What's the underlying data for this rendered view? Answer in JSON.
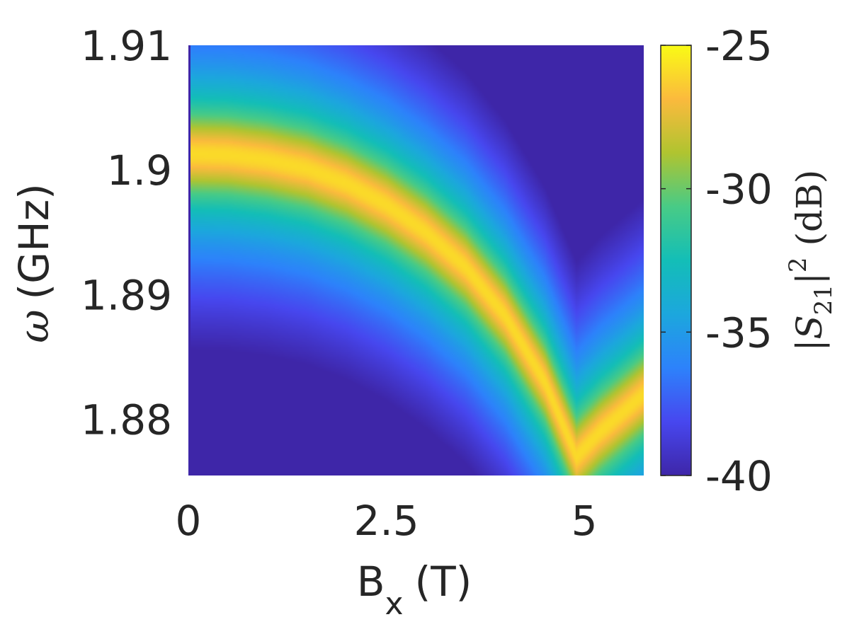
{
  "chart_data": {
    "type": "heatmap",
    "title": "",
    "x": {
      "label_main": "B",
      "label_sub": "x",
      "label_unit": "(T)",
      "range": [
        0,
        5.75
      ],
      "ticks": [
        0,
        2.5,
        5
      ],
      "tick_labels": [
        "0",
        "2.5",
        "5"
      ]
    },
    "y": {
      "label_symbol": "ω",
      "label_unit": "(GHz)",
      "range": [
        1.8755,
        1.91
      ],
      "ticks": [
        1.88,
        1.89,
        1.9,
        1.91
      ],
      "tick_labels": [
        "1.88",
        "1.89",
        "1.9",
        "1.91"
      ]
    },
    "colorbar": {
      "label_prefix": "|S",
      "label_sub": "21",
      "label_sup": "2",
      "label_suffix": "| (dB)",
      "range": [
        -40,
        -25
      ],
      "ticks": [
        -40,
        -35,
        -30,
        -25
      ],
      "tick_labels": [
        "-40",
        "-35",
        "-30",
        "-25"
      ],
      "colormap": "parula"
    },
    "resonance_curve": {
      "description_free": true,
      "B_T": [
        0,
        0.5,
        1.0,
        1.5,
        2.0,
        2.5,
        3.0,
        3.5,
        4.0,
        4.5,
        4.9,
        5.2,
        5.75
      ],
      "omega_GHz": [
        1.9013,
        1.9012,
        1.9008,
        1.9001,
        1.8989,
        1.8972,
        1.895,
        1.8922,
        1.8883,
        1.883,
        1.877,
        1.879,
        1.882
      ]
    },
    "peak_dB": -26,
    "background_dB": -40
  }
}
